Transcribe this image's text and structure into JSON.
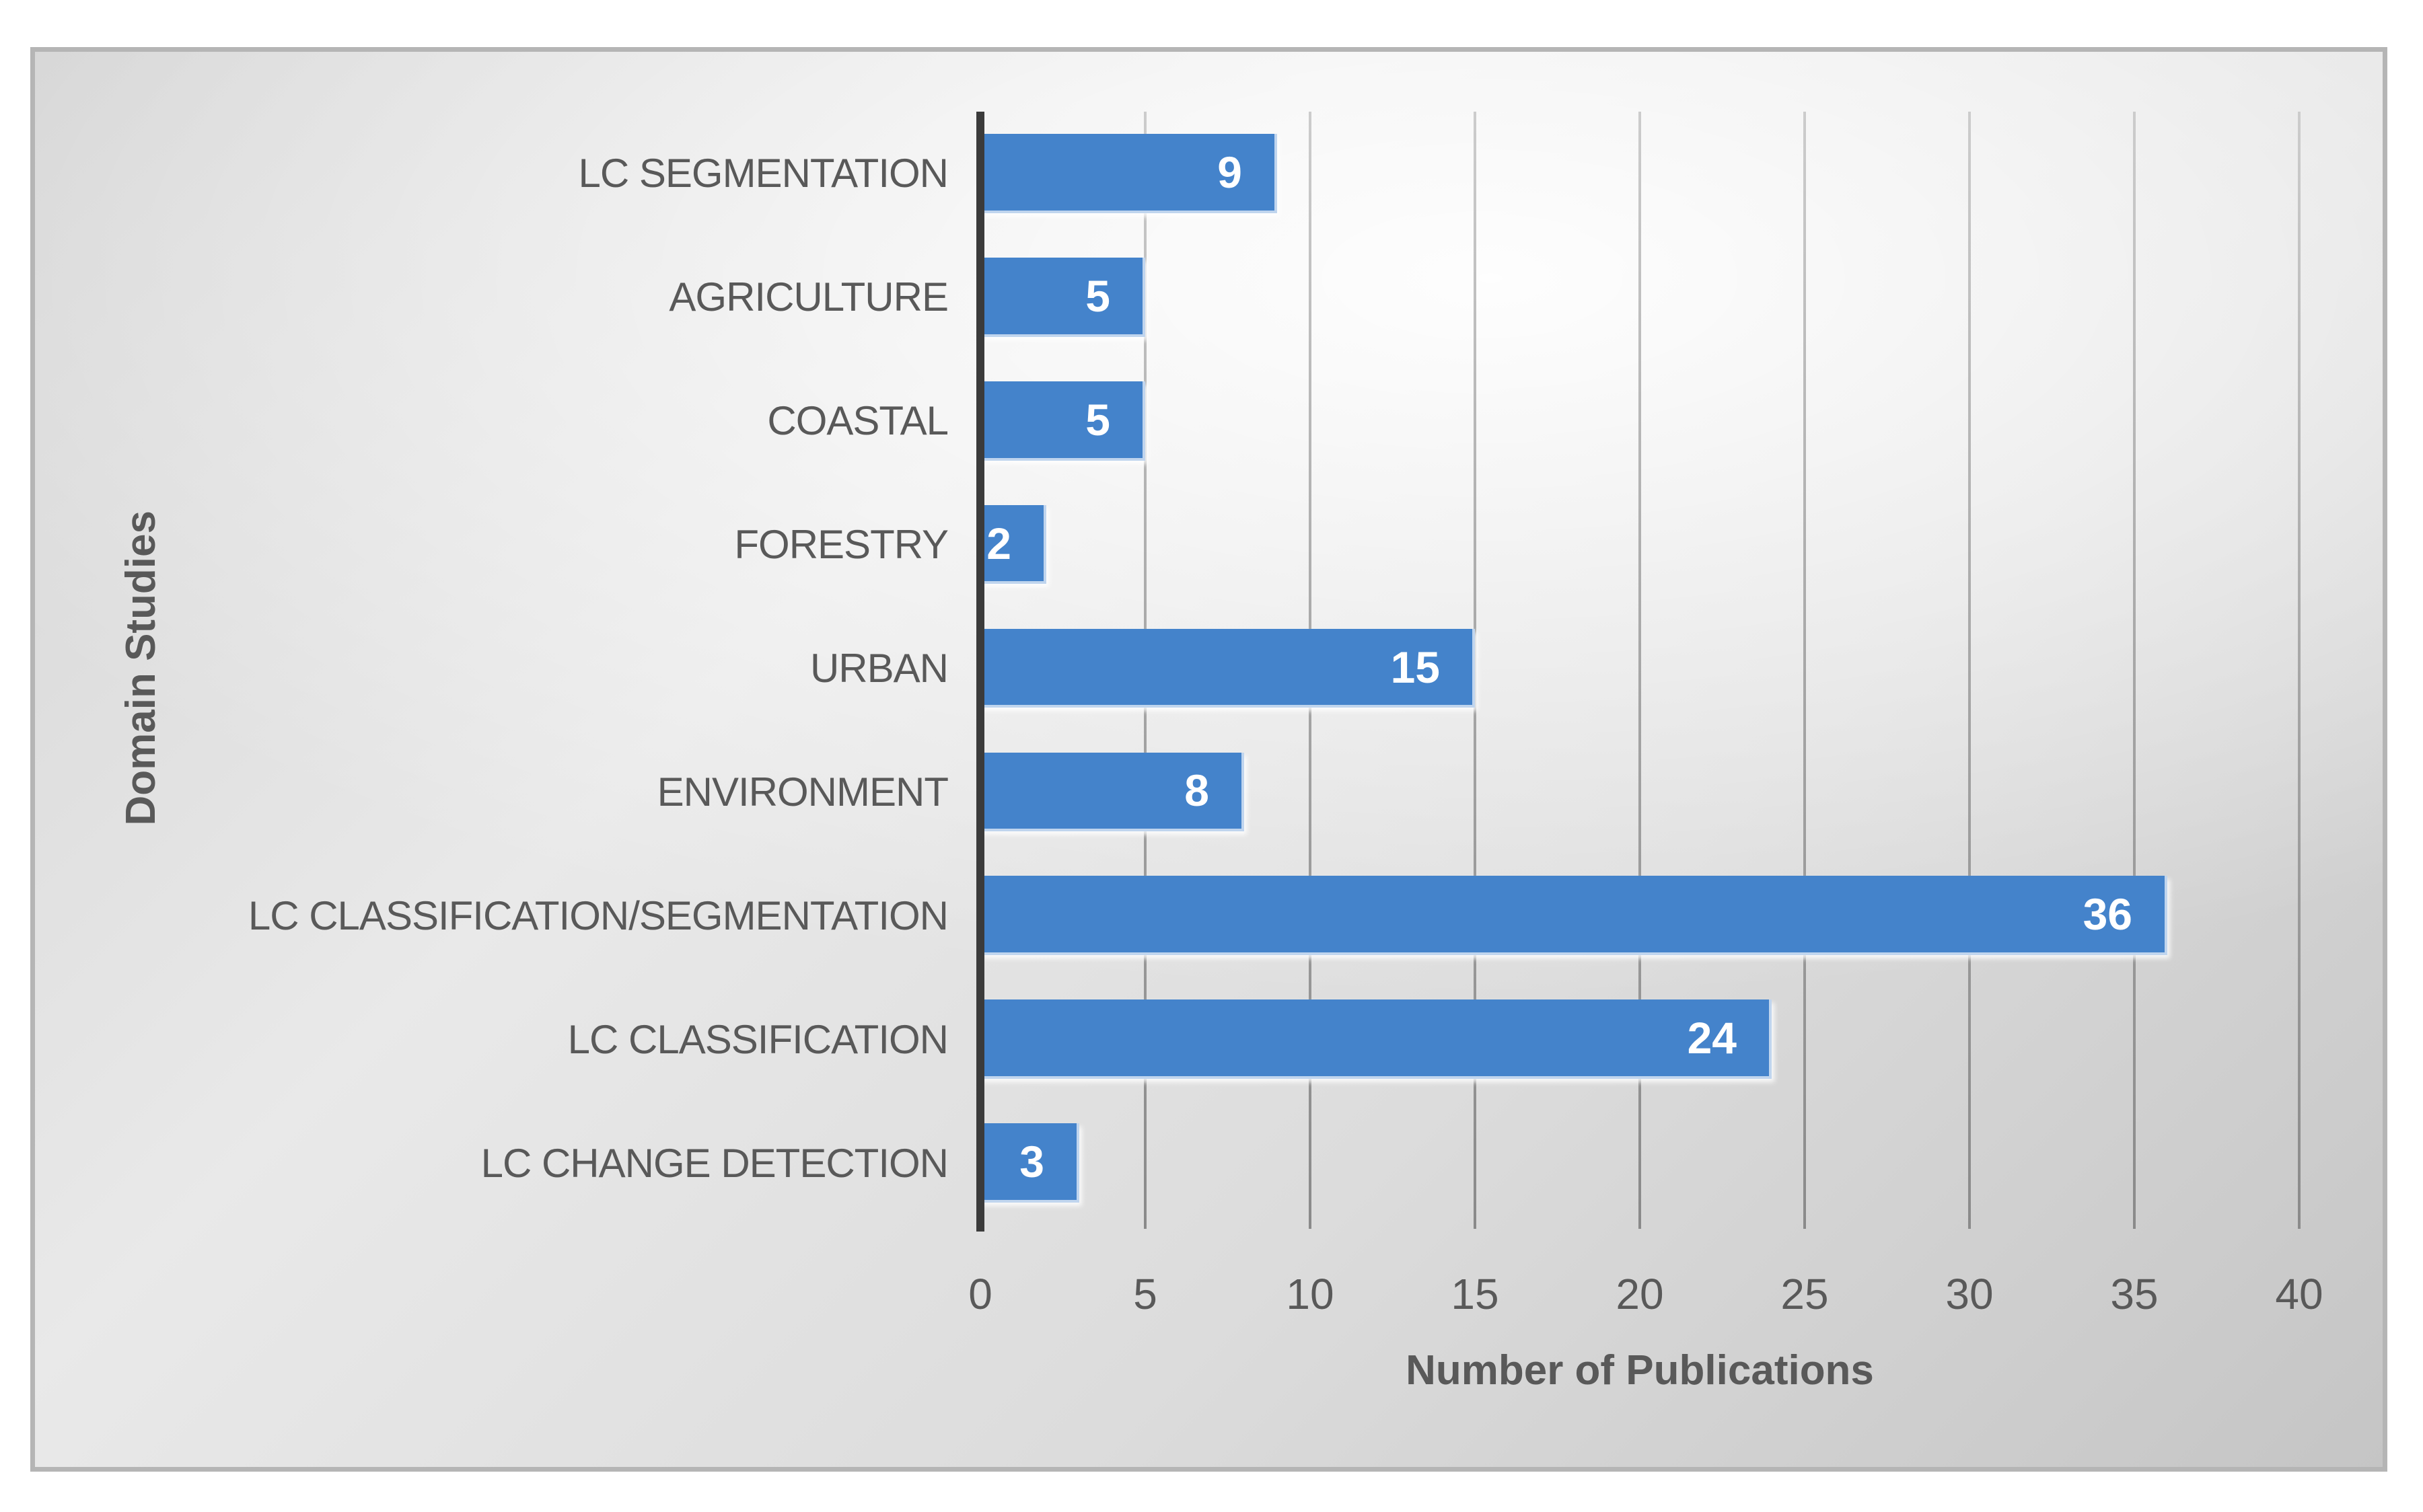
{
  "chart_data": {
    "type": "bar",
    "orientation": "horizontal",
    "title": "",
    "xlabel": "Number of Publications",
    "ylabel": "Domain Studies",
    "categories": [
      "LC SEGMENTATION",
      "AGRICULTURE",
      "COASTAL",
      "FORESTRY",
      "URBAN",
      "ENVIRONMENT",
      "LC CLASSIFICATION/SEGMENTATION",
      "LC CLASSIFICATION",
      "LC CHANGE DETECTION"
    ],
    "values": [
      9,
      5,
      5,
      2,
      15,
      8,
      36,
      24,
      3
    ],
    "value_labels": [
      "9",
      "5",
      "5",
      "2",
      "15",
      "8",
      "36",
      "24",
      "3"
    ],
    "xlim": [
      0,
      40
    ],
    "xticks": [
      0,
      5,
      10,
      15,
      20,
      25,
      30,
      35,
      40
    ],
    "grid": true,
    "legend_position": "none"
  },
  "colors": {
    "bar_fill": "#4483cb",
    "bar_soft_edge": "#c0d5ee",
    "value_label": "#ffffff",
    "axis_text": "#595959",
    "gridline": "#a3a3a3",
    "axis_line": "#3b3b3b",
    "frame_border": "#b5b5b5",
    "background_light": "#f7f7f7",
    "background_dark": "#c5c5c5"
  }
}
